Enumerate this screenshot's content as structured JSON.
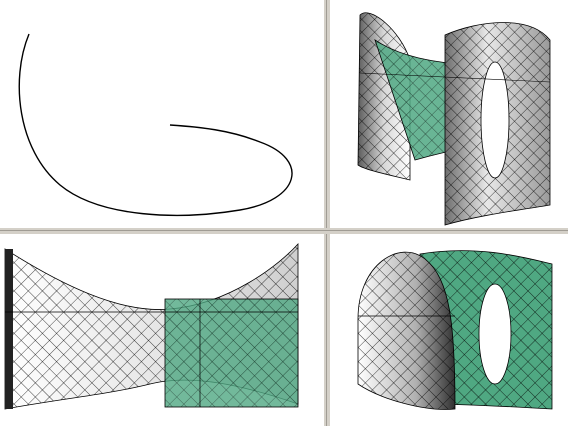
{
  "viewports": [
    {
      "id": "top-left",
      "view": "top",
      "content": "spline-curve"
    },
    {
      "id": "top-right",
      "view": "perspective",
      "content": "surfaces-shaded"
    },
    {
      "id": "bottom-left",
      "view": "front",
      "content": "surfaces-shaded"
    },
    {
      "id": "bottom-right",
      "view": "right",
      "content": "surfaces-shaded"
    }
  ],
  "colors": {
    "background": "#d4d0c8",
    "viewport_background": "#ffffff",
    "surface_green": "#4fa882",
    "surface_grey": "#a8a8a8",
    "wire": "#000000"
  }
}
